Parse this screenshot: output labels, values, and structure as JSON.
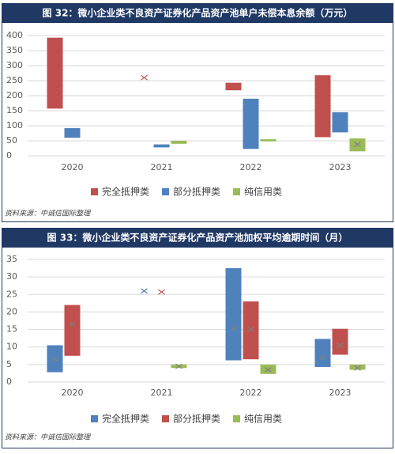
{
  "chart_data": [
    {
      "type": "range-box",
      "title": "图 32：微小企业类不良资产证券化产品资产池单户未偿本息余额（万元）",
      "source": "资料来源：中诚信国际整理",
      "categories": [
        "2020",
        "2021",
        "2022",
        "2023"
      ],
      "ylim": [
        0,
        400
      ],
      "yticks": [
        0,
        50,
        100,
        150,
        200,
        250,
        300,
        350,
        400
      ],
      "series": [
        {
          "name": "完全抵押类",
          "color": "#c0504d",
          "low": [
            157,
            null,
            218,
            62
          ],
          "high": [
            393,
            null,
            243,
            268
          ],
          "mean": [
            null,
            260,
            null,
            null
          ]
        },
        {
          "name": "部分抵押类",
          "color": "#4f81bd",
          "low": [
            60,
            28,
            23,
            78
          ],
          "high": [
            92,
            38,
            190,
            145
          ],
          "mean": [
            null,
            null,
            null,
            null
          ]
        },
        {
          "name": "纯信用类",
          "color": "#9bbb59",
          "low": [
            null,
            40,
            48,
            15
          ],
          "high": [
            null,
            50,
            55,
            58
          ],
          "mean": [
            null,
            null,
            null,
            38
          ]
        }
      ]
    },
    {
      "type": "range-box",
      "title": "图 33：微小企业类不良资产证券化产品资产池加权平均逾期时间（月）",
      "source": "资料来源：中诚信国际整理",
      "categories": [
        "2020",
        "2021",
        "2022",
        "2023"
      ],
      "ylim": [
        0,
        35
      ],
      "yticks": [
        0,
        5,
        10,
        15,
        20,
        25,
        30,
        35
      ],
      "series": [
        {
          "name": "完全抵押类",
          "color": "#4f81bd",
          "low": [
            2.8,
            null,
            6.2,
            4.3
          ],
          "high": [
            10.5,
            null,
            32.5,
            12.3
          ],
          "mean": [
            6.5,
            26,
            15.3,
            7
          ]
        },
        {
          "name": "部分抵押类",
          "color": "#c0504d",
          "low": [
            7.5,
            null,
            6.5,
            7.8
          ],
          "high": [
            22,
            null,
            23,
            15.2
          ],
          "mean": [
            16.5,
            25.7,
            15,
            10.5
          ]
        },
        {
          "name": "纯信用类",
          "color": "#9bbb59",
          "low": [
            null,
            4,
            2.3,
            3.5
          ],
          "high": [
            null,
            5,
            5,
            5
          ],
          "mean": [
            null,
            4.5,
            3.5,
            4
          ]
        }
      ]
    }
  ]
}
